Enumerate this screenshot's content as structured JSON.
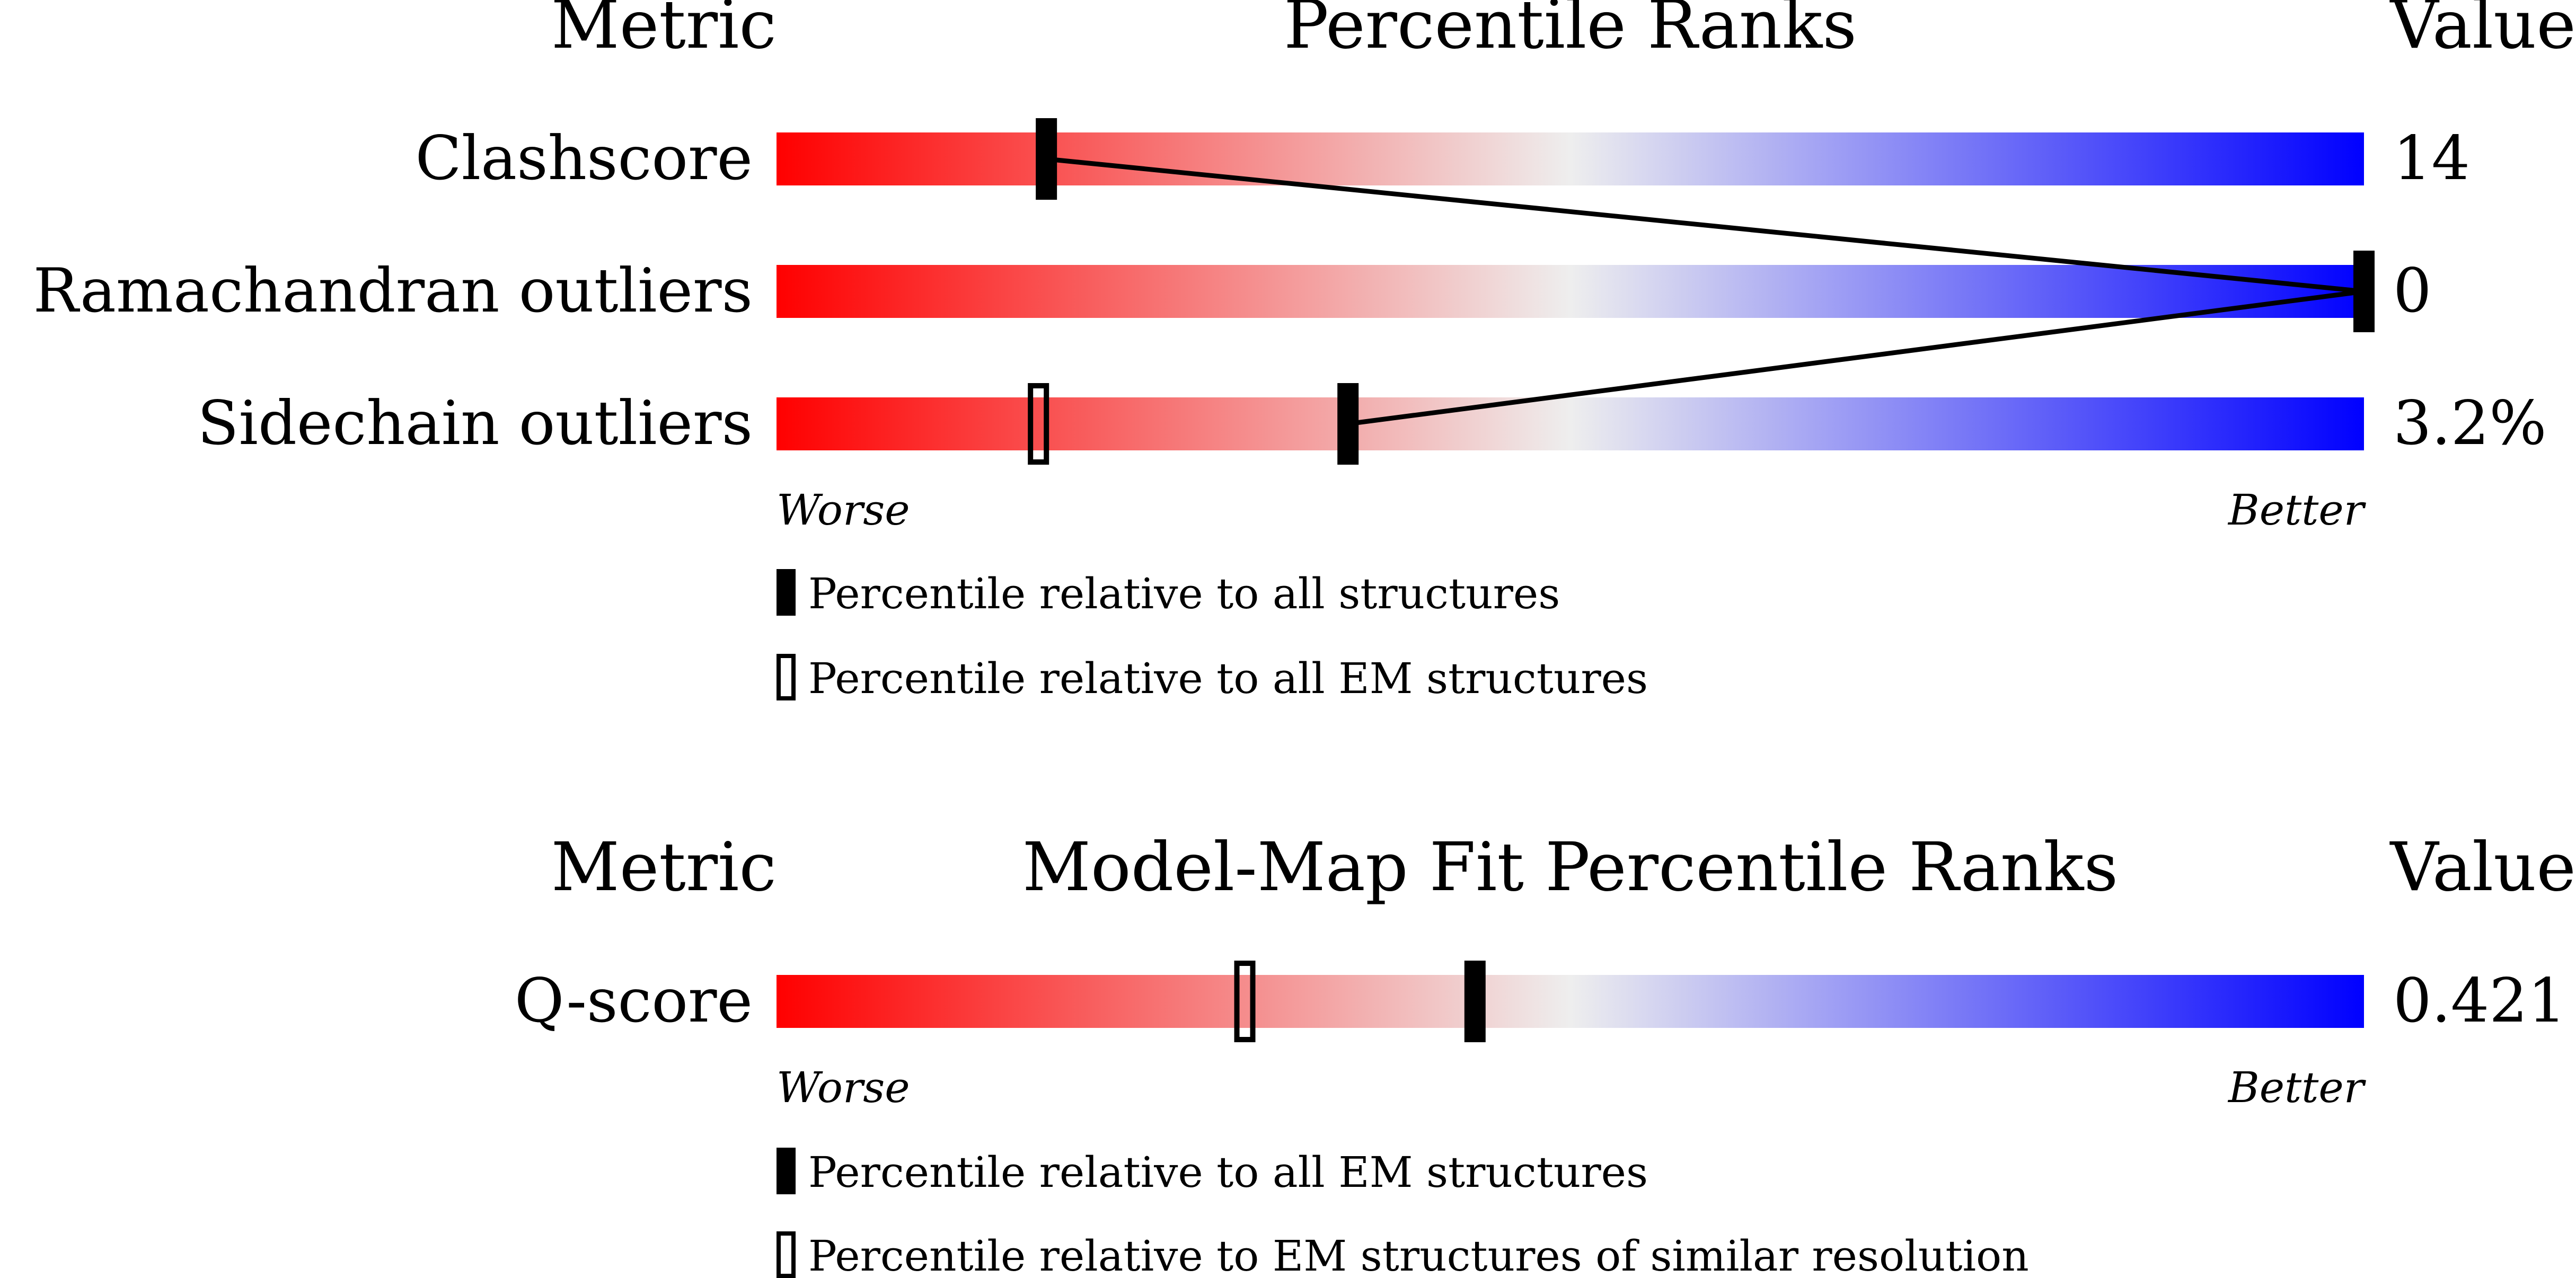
{
  "chart_data": [
    {
      "type": "bar",
      "headers": {
        "metric": "Metric",
        "title": "Percentile Ranks",
        "value": "Value"
      },
      "axis": {
        "min": 0,
        "max": 100,
        "worse": "Worse",
        "better": "Better"
      },
      "categories": [
        "Clashscore",
        "Ramachandran outliers",
        "Sidechain outliers"
      ],
      "values": [
        "14",
        "0",
        "3.2%"
      ],
      "series": [
        {
          "name": "Percentile relative to all structures",
          "marker": "filled",
          "values": [
            17,
            100,
            36
          ]
        },
        {
          "name": "Percentile relative to all EM structures",
          "marker": "open",
          "values": [
            null,
            null,
            16.5
          ]
        }
      ],
      "connect_filled_markers": true
    },
    {
      "type": "bar",
      "headers": {
        "metric": "Metric",
        "title": "Model-Map Fit Percentile Ranks",
        "value": "Value"
      },
      "axis": {
        "min": 0,
        "max": 100,
        "worse": "Worse",
        "better": "Better"
      },
      "categories": [
        "Q-score"
      ],
      "values": [
        "0.421"
      ],
      "series": [
        {
          "name": "Percentile relative to all EM structures",
          "marker": "filled",
          "values": [
            44
          ]
        },
        {
          "name": "Percentile relative to EM structures of similar resolution",
          "marker": "open",
          "values": [
            29.5
          ]
        }
      ],
      "connect_filled_markers": false
    }
  ],
  "colors": {
    "worse": "#ff0000",
    "middle": "#eeeeee",
    "better": "#0000ff",
    "marker": "#000000",
    "background": "#ffffff"
  }
}
